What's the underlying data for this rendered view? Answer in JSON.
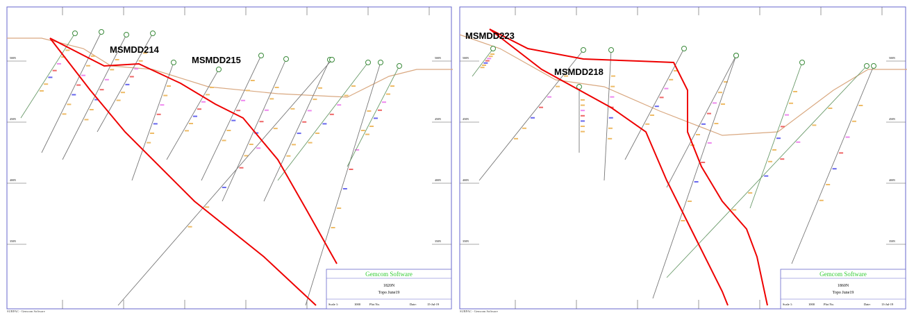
{
  "panels": [
    {
      "holes": [
        "MSMDD214",
        "MSMDD215"
      ],
      "elevations": [
        "500N",
        "450N",
        "400N",
        "350N"
      ],
      "title_block": {
        "company": "Gemcom Software",
        "section": "1820N",
        "topo": "Topo June19",
        "scale_label": "Scale 1:",
        "scale": 1000,
        "plot_label": "Plot No.",
        "date_label": "Date:",
        "date": "15-Jul-19"
      },
      "footer": "SURPAC - Gemcom Software"
    },
    {
      "holes": [
        "MSMDD223",
        "MSMDD218"
      ],
      "elevations": [
        "500N",
        "450N",
        "400N",
        "350N"
      ],
      "title_block": {
        "company": "Gemcom Software",
        "section": "1860N",
        "topo": "Topo June19",
        "scale_label": "Scale 1:",
        "scale": 1000,
        "plot_label": "Plot No.",
        "date_label": "Date:",
        "date": "13-Jul-19"
      },
      "footer": "SURPAC - Gemcom Software"
    }
  ]
}
